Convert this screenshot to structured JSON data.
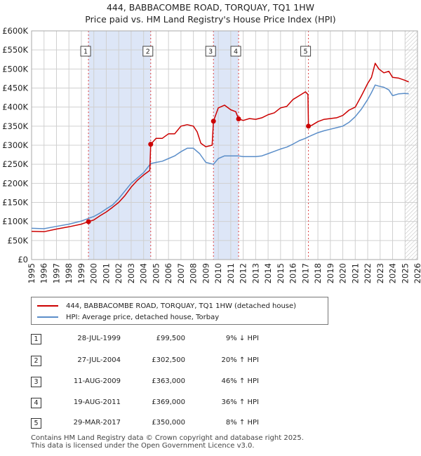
{
  "title": "444, BABBACOMBE ROAD, TORQUAY, TQ1 1HW",
  "subtitle": "Price paid vs. HM Land Registry's House Price Index (HPI)",
  "colors": {
    "property": "#cc0000",
    "hpi": "#5b8ec9",
    "band": "#dde6f7",
    "grid": "#d0d0d0"
  },
  "chart_data": {
    "type": "line",
    "xlim": [
      1995,
      2026
    ],
    "ylim": [
      0,
      600000
    ],
    "x_ticks": [
      "1995",
      "1996",
      "1997",
      "1998",
      "1999",
      "2000",
      "2001",
      "2002",
      "2003",
      "2004",
      "2005",
      "2006",
      "2007",
      "2008",
      "2009",
      "2010",
      "2011",
      "2012",
      "2013",
      "2014",
      "2015",
      "2016",
      "2017",
      "2018",
      "2019",
      "2020",
      "2021",
      "2022",
      "2023",
      "2024",
      "2025",
      "2026"
    ],
    "y_ticks": [
      "£0",
      "£50K",
      "£100K",
      "£150K",
      "£200K",
      "£250K",
      "£300K",
      "£350K",
      "£400K",
      "£450K",
      "£500K",
      "£550K",
      "£600K"
    ],
    "grid": true,
    "hatched_after": 2025.0,
    "series": [
      {
        "name": "444, BABBACOMBE ROAD, TORQUAY, TQ1 1HW (detached house)",
        "points": [
          [
            1995.0,
            74000
          ],
          [
            1996.0,
            73000
          ],
          [
            1997.0,
            80000
          ],
          [
            1998.0,
            86000
          ],
          [
            1999.0,
            93000
          ],
          [
            1999.57,
            99500
          ],
          [
            2000.0,
            104000
          ],
          [
            2000.5,
            115000
          ],
          [
            2001.0,
            125000
          ],
          [
            2001.5,
            137000
          ],
          [
            2002.0,
            150000
          ],
          [
            2002.5,
            168000
          ],
          [
            2003.0,
            190000
          ],
          [
            2003.5,
            208000
          ],
          [
            2004.0,
            222000
          ],
          [
            2004.5,
            234000
          ],
          [
            2004.57,
            302500
          ],
          [
            2005.0,
            318000
          ],
          [
            2005.5,
            318000
          ],
          [
            2006.0,
            330000
          ],
          [
            2006.5,
            330000
          ],
          [
            2007.0,
            350000
          ],
          [
            2007.5,
            354000
          ],
          [
            2008.0,
            350000
          ],
          [
            2008.3,
            335000
          ],
          [
            2008.6,
            305000
          ],
          [
            2009.0,
            296000
          ],
          [
            2009.5,
            300000
          ],
          [
            2009.61,
            363000
          ],
          [
            2010.0,
            398000
          ],
          [
            2010.5,
            405000
          ],
          [
            2011.0,
            393000
          ],
          [
            2011.4,
            388000
          ],
          [
            2011.63,
            369000
          ],
          [
            2012.0,
            365000
          ],
          [
            2012.5,
            370000
          ],
          [
            2013.0,
            368000
          ],
          [
            2013.5,
            372000
          ],
          [
            2014.0,
            380000
          ],
          [
            2014.5,
            385000
          ],
          [
            2015.0,
            398000
          ],
          [
            2015.5,
            402000
          ],
          [
            2016.0,
            420000
          ],
          [
            2016.5,
            430000
          ],
          [
            2017.0,
            440000
          ],
          [
            2017.2,
            433000
          ],
          [
            2017.24,
            350000
          ],
          [
            2017.5,
            352000
          ],
          [
            2018.0,
            362000
          ],
          [
            2018.5,
            368000
          ],
          [
            2019.0,
            370000
          ],
          [
            2019.5,
            372000
          ],
          [
            2020.0,
            378000
          ],
          [
            2020.5,
            392000
          ],
          [
            2021.0,
            400000
          ],
          [
            2021.5,
            430000
          ],
          [
            2022.0,
            462000
          ],
          [
            2022.3,
            478000
          ],
          [
            2022.6,
            515000
          ],
          [
            2022.9,
            500000
          ],
          [
            2023.3,
            490000
          ],
          [
            2023.7,
            494000
          ],
          [
            2024.0,
            478000
          ],
          [
            2024.5,
            476000
          ],
          [
            2025.0,
            470000
          ],
          [
            2025.3,
            466000
          ]
        ]
      },
      {
        "name": "HPI: Average price, detached house, Torbay",
        "points": [
          [
            1995.0,
            82000
          ],
          [
            1996.0,
            81000
          ],
          [
            1997.0,
            87000
          ],
          [
            1998.0,
            93000
          ],
          [
            1999.0,
            101000
          ],
          [
            1999.57,
            108000
          ],
          [
            2000.0,
            113000
          ],
          [
            2000.5,
            122000
          ],
          [
            2001.0,
            133000
          ],
          [
            2001.5,
            143000
          ],
          [
            2002.0,
            160000
          ],
          [
            2002.5,
            180000
          ],
          [
            2003.0,
            200000
          ],
          [
            2003.5,
            214000
          ],
          [
            2004.0,
            228000
          ],
          [
            2004.57,
            252000
          ],
          [
            2005.0,
            255000
          ],
          [
            2005.5,
            258000
          ],
          [
            2006.0,
            265000
          ],
          [
            2006.5,
            272000
          ],
          [
            2007.0,
            283000
          ],
          [
            2007.5,
            292000
          ],
          [
            2008.0,
            292000
          ],
          [
            2008.5,
            278000
          ],
          [
            2009.0,
            255000
          ],
          [
            2009.61,
            250000
          ],
          [
            2010.0,
            265000
          ],
          [
            2010.5,
            272000
          ],
          [
            2011.0,
            272000
          ],
          [
            2011.63,
            272000
          ],
          [
            2012.0,
            270000
          ],
          [
            2012.5,
            270000
          ],
          [
            2013.0,
            270000
          ],
          [
            2013.5,
            272000
          ],
          [
            2014.0,
            278000
          ],
          [
            2014.5,
            284000
          ],
          [
            2015.0,
            290000
          ],
          [
            2015.5,
            295000
          ],
          [
            2016.0,
            303000
          ],
          [
            2016.5,
            312000
          ],
          [
            2017.0,
            318000
          ],
          [
            2017.24,
            322000
          ],
          [
            2017.5,
            326000
          ],
          [
            2018.0,
            333000
          ],
          [
            2018.5,
            338000
          ],
          [
            2019.0,
            342000
          ],
          [
            2019.5,
            346000
          ],
          [
            2020.0,
            350000
          ],
          [
            2020.5,
            360000
          ],
          [
            2021.0,
            375000
          ],
          [
            2021.5,
            395000
          ],
          [
            2022.0,
            420000
          ],
          [
            2022.3,
            438000
          ],
          [
            2022.6,
            458000
          ],
          [
            2022.9,
            455000
          ],
          [
            2023.3,
            452000
          ],
          [
            2023.7,
            445000
          ],
          [
            2024.0,
            430000
          ],
          [
            2024.5,
            435000
          ],
          [
            2025.0,
            436000
          ],
          [
            2025.3,
            435000
          ]
        ]
      }
    ],
    "transactions": [
      {
        "id": "1",
        "x": 1999.57,
        "price": 99500
      },
      {
        "id": "2",
        "x": 2004.57,
        "price": 302500
      },
      {
        "id": "3",
        "x": 2009.61,
        "price": 363000
      },
      {
        "id": "4",
        "x": 2011.63,
        "price": 369000
      },
      {
        "id": "5",
        "x": 2017.24,
        "price": 350000
      }
    ],
    "bands": [
      [
        1999.57,
        2004.57
      ],
      [
        2009.61,
        2011.63
      ]
    ]
  },
  "legend": {
    "property": "444, BABBACOMBE ROAD, TORQUAY, TQ1 1HW (detached house)",
    "hpi": "HPI: Average price, detached house, Torbay"
  },
  "table": [
    {
      "num": "1",
      "date": "28-JUL-1999",
      "price": "£99,500",
      "hpi": "9% ↓ HPI"
    },
    {
      "num": "2",
      "date": "27-JUL-2004",
      "price": "£302,500",
      "hpi": "20% ↑ HPI"
    },
    {
      "num": "3",
      "date": "11-AUG-2009",
      "price": "£363,000",
      "hpi": "46% ↑ HPI"
    },
    {
      "num": "4",
      "date": "19-AUG-2011",
      "price": "£369,000",
      "hpi": "36% ↑ HPI"
    },
    {
      "num": "5",
      "date": "29-MAR-2017",
      "price": "£350,000",
      "hpi": "8% ↑ HPI"
    }
  ],
  "footer": {
    "line1": "Contains HM Land Registry data © Crown copyright and database right 2025.",
    "line2": "This data is licensed under the Open Government Licence v3.0."
  }
}
